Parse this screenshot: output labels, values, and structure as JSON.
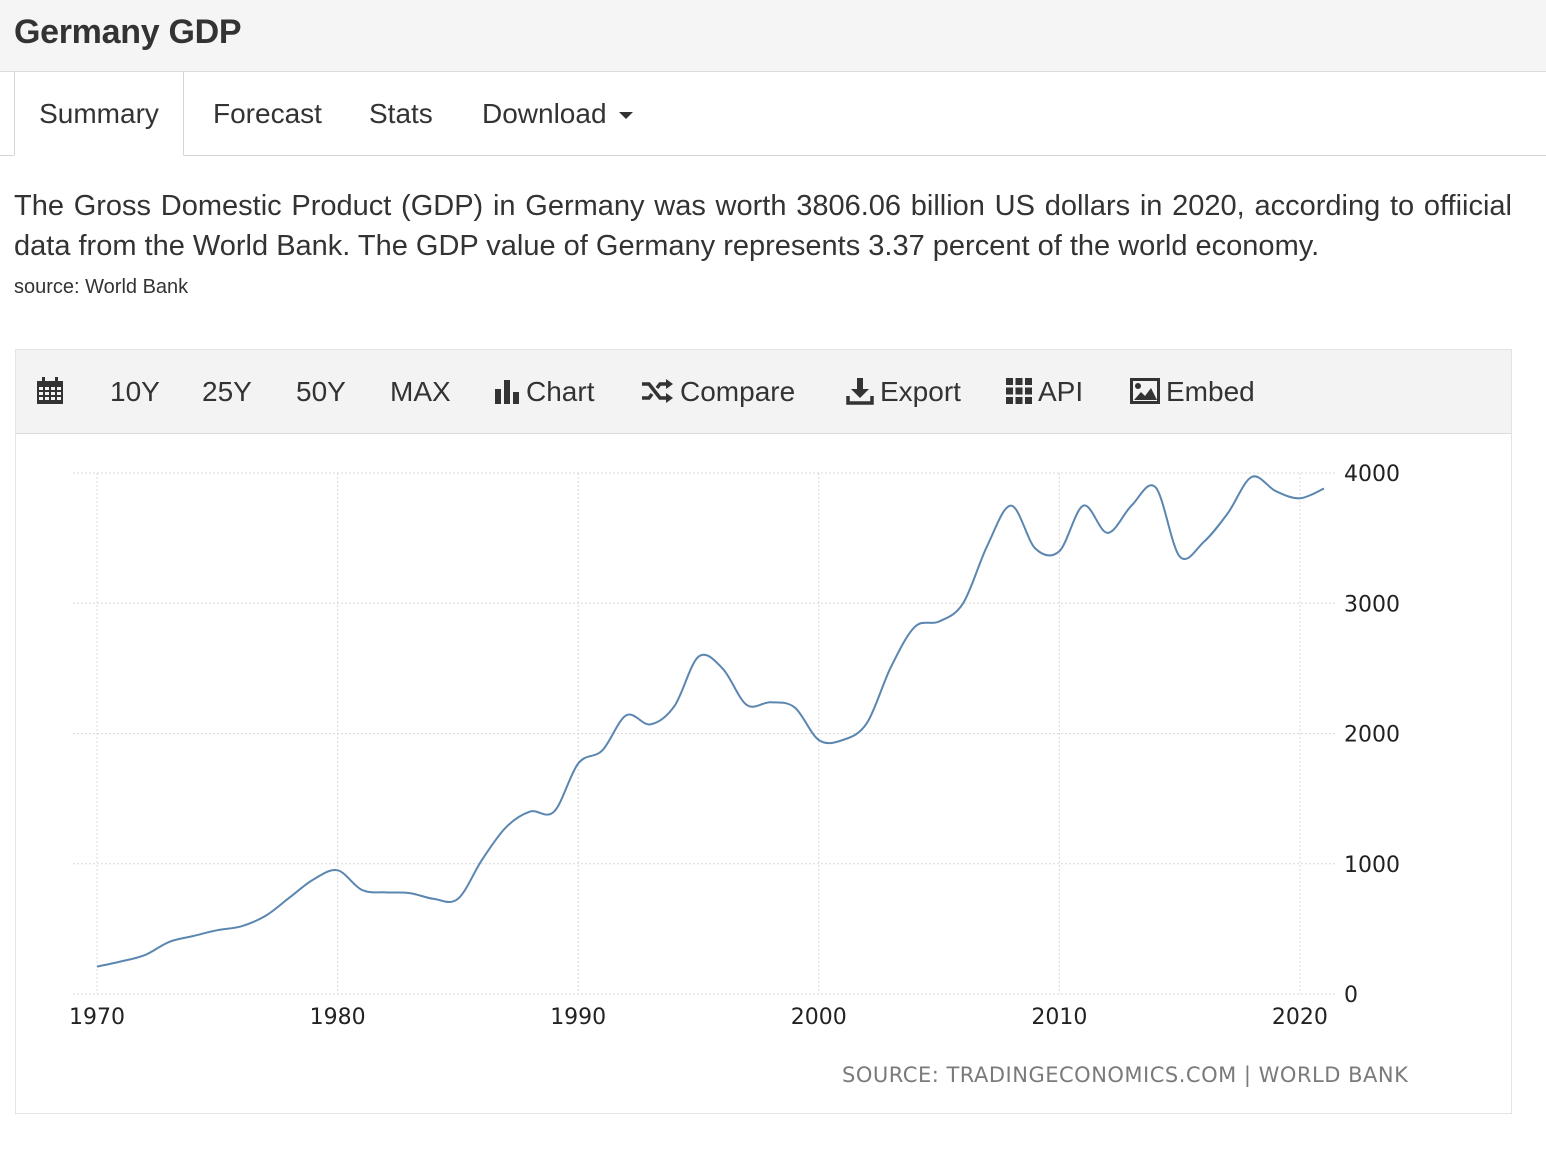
{
  "page": {
    "title": "Germany GDP"
  },
  "tabs": [
    {
      "label": "Summary",
      "active": true
    },
    {
      "label": "Forecast"
    },
    {
      "label": "Stats"
    },
    {
      "label": "Download"
    }
  ],
  "summary": {
    "text": "The Gross Domestic Product (GDP) in Germany was worth 3806.06 billion US dollars in 2020, according to offiicial data from the World Bank. The GDP value of Germany represents 3.37 percent of the world economy.",
    "source": "source: World Bank"
  },
  "toolbar": {
    "calendar_icon": "calendar-icon",
    "range_buttons": [
      "10Y",
      "25Y",
      "50Y",
      "MAX"
    ],
    "chart_label": "Chart",
    "compare_label": "Compare",
    "export_label": "Export",
    "api_label": "API",
    "embed_label": "Embed"
  },
  "chart_source": "SOURCE: TRADINGECONOMICS.COM | WORLD BANK",
  "colors": {
    "line": "#5b86b0",
    "grid": "#d9d9d9"
  },
  "chart_data": {
    "type": "line",
    "title": "",
    "xlabel": "",
    "ylabel": "",
    "x_ticks": [
      1970,
      1980,
      1990,
      2000,
      2010,
      2020
    ],
    "y_ticks": [
      0,
      1000,
      2000,
      3000,
      4000
    ],
    "xlim": [
      1969,
      2021.5
    ],
    "ylim": [
      0,
      4000
    ],
    "grid": true,
    "y_axis_position": "right",
    "series": [
      {
        "values": [
          {
            "x": 1970,
            "y": 210
          },
          {
            "x": 1971,
            "y": 250
          },
          {
            "x": 1972,
            "y": 300
          },
          {
            "x": 1973,
            "y": 400
          },
          {
            "x": 1974,
            "y": 445
          },
          {
            "x": 1975,
            "y": 490
          },
          {
            "x": 1976,
            "y": 520
          },
          {
            "x": 1977,
            "y": 600
          },
          {
            "x": 1978,
            "y": 740
          },
          {
            "x": 1979,
            "y": 880
          },
          {
            "x": 1980,
            "y": 950
          },
          {
            "x": 1981,
            "y": 800
          },
          {
            "x": 1982,
            "y": 780
          },
          {
            "x": 1983,
            "y": 775
          },
          {
            "x": 1984,
            "y": 730
          },
          {
            "x": 1985,
            "y": 730
          },
          {
            "x": 1986,
            "y": 1030
          },
          {
            "x": 1987,
            "y": 1280
          },
          {
            "x": 1988,
            "y": 1400
          },
          {
            "x": 1989,
            "y": 1400
          },
          {
            "x": 1990,
            "y": 1770
          },
          {
            "x": 1991,
            "y": 1870
          },
          {
            "x": 1992,
            "y": 2140
          },
          {
            "x": 1993,
            "y": 2070
          },
          {
            "x": 1994,
            "y": 2210
          },
          {
            "x": 1995,
            "y": 2590
          },
          {
            "x": 1996,
            "y": 2500
          },
          {
            "x": 1997,
            "y": 2220
          },
          {
            "x": 1998,
            "y": 2240
          },
          {
            "x": 1999,
            "y": 2200
          },
          {
            "x": 2000,
            "y": 1950
          },
          {
            "x": 2001,
            "y": 1950
          },
          {
            "x": 2002,
            "y": 2080
          },
          {
            "x": 2003,
            "y": 2510
          },
          {
            "x": 2004,
            "y": 2820
          },
          {
            "x": 2005,
            "y": 2860
          },
          {
            "x": 2006,
            "y": 3000
          },
          {
            "x": 2007,
            "y": 3440
          },
          {
            "x": 2008,
            "y": 3750
          },
          {
            "x": 2009,
            "y": 3420
          },
          {
            "x": 2010,
            "y": 3400
          },
          {
            "x": 2011,
            "y": 3750
          },
          {
            "x": 2012,
            "y": 3540
          },
          {
            "x": 2013,
            "y": 3750
          },
          {
            "x": 2014,
            "y": 3890
          },
          {
            "x": 2015,
            "y": 3360
          },
          {
            "x": 2016,
            "y": 3470
          },
          {
            "x": 2017,
            "y": 3690
          },
          {
            "x": 2018,
            "y": 3970
          },
          {
            "x": 2019,
            "y": 3860
          },
          {
            "x": 2020,
            "y": 3806.06
          },
          {
            "x": 2021,
            "y": 3880
          }
        ]
      }
    ]
  }
}
